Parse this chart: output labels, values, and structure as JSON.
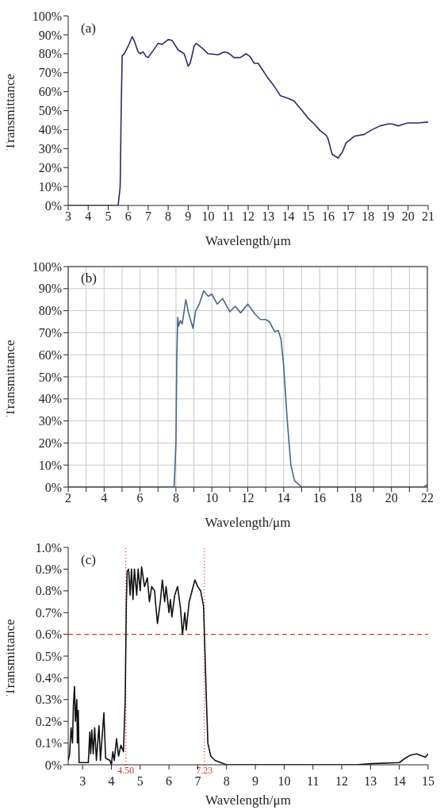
{
  "chart_data": [
    {
      "type": "line",
      "xlabel": "Wavelength/μm",
      "ylabel": "Transmittance",
      "annotations": [
        "(a)"
      ],
      "grid": false,
      "xlim": [
        3,
        21
      ],
      "xticks": [
        3,
        4,
        5,
        6,
        7,
        8,
        9,
        10,
        11,
        12,
        13,
        14,
        15,
        16,
        17,
        18,
        19,
        20,
        21
      ],
      "ylim": [
        0,
        100
      ],
      "yticks": [
        {
          "value": 0,
          "label": "0%"
        },
        {
          "value": 10,
          "label": "10%"
        },
        {
          "value": 20,
          "label": "20%"
        },
        {
          "value": 30,
          "label": "30%"
        },
        {
          "value": 40,
          "label": "40%"
        },
        {
          "value": 50,
          "label": "50%"
        },
        {
          "value": 60,
          "label": "60%"
        },
        {
          "value": 70,
          "label": "70%"
        },
        {
          "value": 80,
          "label": "80%"
        },
        {
          "value": 90,
          "label": "90%"
        },
        {
          "value": 100,
          "label": "100%"
        }
      ],
      "series": [
        {
          "color": "#2b2b6a",
          "x": [
            3,
            5.4,
            5.5,
            5.6,
            5.65,
            5.7,
            5.8,
            6.0,
            6.2,
            6.3,
            6.5,
            6.6,
            6.75,
            6.9,
            7.0,
            7.2,
            7.5,
            7.7,
            8.0,
            8.2,
            8.5,
            8.8,
            9.0,
            9.1,
            9.3,
            9.4,
            9.7,
            10.0,
            10.5,
            10.8,
            11.0,
            11.3,
            11.6,
            11.9,
            12.1,
            12.3,
            12.5,
            13.0,
            13.3,
            13.6,
            14.0,
            14.3,
            14.7,
            15.0,
            15.3,
            15.6,
            15.9,
            16.0,
            16.2,
            16.5,
            16.7,
            16.9,
            17.3,
            17.8,
            18.2,
            18.6,
            19.0,
            19.2,
            19.5,
            19.8,
            20.0,
            20.5,
            21.0
          ],
          "values": [
            0,
            0,
            0,
            10,
            50,
            79,
            80,
            84,
            89,
            87,
            81,
            80,
            81,
            78.5,
            78,
            81,
            85.5,
            85,
            87.5,
            87,
            82,
            80,
            73.5,
            75,
            84,
            85.5,
            83,
            80,
            79.5,
            81,
            80.5,
            78,
            78,
            80,
            78.5,
            75,
            75,
            67,
            63,
            58,
            56.5,
            55,
            50,
            46,
            43,
            39.5,
            37,
            35,
            27,
            25,
            28,
            33,
            36.5,
            37.5,
            40,
            42,
            43,
            43,
            42,
            43,
            43.5,
            43.5,
            44
          ]
        }
      ]
    },
    {
      "type": "line",
      "xlabel": "Wavelength/μm",
      "ylabel": "Transmittance",
      "annotations": [
        "(b)"
      ],
      "grid": true,
      "xlim": [
        2,
        22
      ],
      "xticks": [
        2,
        {
          "value": 3,
          "label": null
        },
        4,
        {
          "value": 5,
          "label": null
        },
        6,
        {
          "value": 7,
          "label": null
        },
        8,
        {
          "value": 9,
          "label": null
        },
        10,
        {
          "value": 11,
          "label": null
        },
        12,
        {
          "value": 13,
          "label": null
        },
        14,
        {
          "value": 15,
          "label": null
        },
        16,
        {
          "value": 17,
          "label": null
        },
        18,
        {
          "value": 19,
          "label": null
        },
        20,
        {
          "value": 21,
          "label": null
        },
        22
      ],
      "ylim": [
        0,
        100
      ],
      "yticks": [
        {
          "value": 0,
          "label": "0%"
        },
        {
          "value": 10,
          "label": "10%"
        },
        {
          "value": 20,
          "label": "20%"
        },
        {
          "value": 30,
          "label": "30%"
        },
        {
          "value": 40,
          "label": "40%"
        },
        {
          "value": 50,
          "label": "50%"
        },
        {
          "value": 60,
          "label": "60%"
        },
        {
          "value": 70,
          "label": "70%"
        },
        {
          "value": 80,
          "label": "80%"
        },
        {
          "value": 90,
          "label": "90%"
        },
        {
          "value": 100,
          "label": "100%"
        }
      ],
      "series": [
        {
          "color": "#4b6587",
          "x": [
            2,
            7.9,
            8.0,
            8.05,
            8.1,
            8.15,
            8.25,
            8.35,
            8.55,
            8.7,
            8.95,
            9.1,
            9.3,
            9.55,
            9.8,
            10.0,
            10.3,
            10.6,
            11.0,
            11.3,
            11.6,
            12.0,
            12.4,
            12.7,
            13.0,
            13.2,
            13.5,
            13.7,
            13.85,
            14.0,
            14.2,
            14.4,
            14.6,
            15.0,
            21.8,
            22
          ],
          "values": [
            0,
            0,
            20,
            60,
            77,
            73,
            75.5,
            74,
            85,
            79,
            72,
            80,
            83,
            89,
            86.5,
            87.5,
            83,
            85.5,
            79.5,
            82,
            79,
            83,
            78.5,
            76,
            76,
            75,
            70.5,
            71,
            67,
            55,
            30,
            10,
            3,
            0,
            0,
            1
          ]
        }
      ]
    },
    {
      "type": "line",
      "xlabel": "Wavelength/μm",
      "ylabel": "Transmittance",
      "annotations": [
        "(c)"
      ],
      "grid": false,
      "xlim": [
        2.5,
        15
      ],
      "xticks": [
        3,
        4,
        5,
        6,
        7,
        8,
        9,
        10,
        11,
        12,
        13,
        14,
        15
      ],
      "ylim": [
        0,
        1.0
      ],
      "yticks": [
        {
          "value": 0,
          "label": "0%"
        },
        {
          "value": 0.1,
          "label": "0.1%"
        },
        {
          "value": 0.2,
          "label": "0.2%"
        },
        {
          "value": 0.3,
          "label": "0.3%"
        },
        {
          "value": 0.4,
          "label": "0.4%"
        },
        {
          "value": 0.5,
          "label": "0.5%"
        },
        {
          "value": 0.6,
          "label": "0.6%"
        },
        {
          "value": 0.7,
          "label": "0.7%"
        },
        {
          "value": 0.8,
          "label": "0.8%"
        },
        {
          "value": 0.9,
          "label": "0.9%"
        },
        {
          "value": 1.0,
          "label": "1.0%"
        }
      ],
      "ref_lines": [
        {
          "axis": "y",
          "value": 0.6,
          "color": "#e8322e",
          "line_style": "dashed"
        },
        {
          "axis": "x",
          "value": 4.5,
          "label": "4.50",
          "color": "#e8322e",
          "line_style": "dotted"
        },
        {
          "axis": "x",
          "value": 7.23,
          "label": "7.23",
          "color": "#e8322e",
          "line_style": "dotted"
        }
      ],
      "series": [
        {
          "color": "#111111",
          "x": [
            2.5,
            2.55,
            2.6,
            2.65,
            2.68,
            2.72,
            2.75,
            2.8,
            2.82,
            2.85,
            2.88,
            3.0,
            3.2,
            3.25,
            3.28,
            3.32,
            3.37,
            3.42,
            3.48,
            3.57,
            3.62,
            3.74,
            3.8,
            3.95,
            4.0,
            4.05,
            4.1,
            4.18,
            4.25,
            4.33,
            4.42,
            4.48,
            4.52,
            4.55,
            4.6,
            4.65,
            4.7,
            4.75,
            4.8,
            4.88,
            4.93,
            5.0,
            5.05,
            5.15,
            5.25,
            5.32,
            5.4,
            5.5,
            5.55,
            5.6,
            5.7,
            5.77,
            5.85,
            5.9,
            6.0,
            6.05,
            6.1,
            6.2,
            6.3,
            6.4,
            6.47,
            6.55,
            6.6,
            6.7,
            6.8,
            6.9,
            7.0,
            7.1,
            7.2,
            7.23,
            7.3,
            7.35,
            7.45,
            7.6,
            7.8,
            8.0,
            10,
            12.5,
            13,
            14.0,
            14.2,
            14.4,
            14.6,
            14.8,
            14.9,
            15.0
          ],
          "values": [
            0.02,
            0.05,
            0.17,
            0.1,
            0.27,
            0.36,
            0.2,
            0.3,
            0.1,
            0.25,
            0.01,
            0.01,
            0.01,
            0.15,
            0.05,
            0.16,
            0.05,
            0.17,
            0.02,
            0.18,
            0.02,
            0.24,
            0.03,
            0.02,
            0,
            0.06,
            0.02,
            0.12,
            0.04,
            0.09,
            0.06,
            0.3,
            0.75,
            0.89,
            0.9,
            0.78,
            0.9,
            0.76,
            0.9,
            0.78,
            0.9,
            0.8,
            0.91,
            0.82,
            0.86,
            0.75,
            0.82,
            0.8,
            0.72,
            0.65,
            0.75,
            0.85,
            0.75,
            0.82,
            0.7,
            0.76,
            0.68,
            0.78,
            0.82,
            0.72,
            0.6,
            0.7,
            0.62,
            0.75,
            0.8,
            0.85,
            0.82,
            0.8,
            0.73,
            0.6,
            0.3,
            0.1,
            0.04,
            0.02,
            0.01,
            0,
            0,
            0,
            0.005,
            0.01,
            0.03,
            0.045,
            0.05,
            0.04,
            0.035,
            0.05
          ]
        }
      ]
    }
  ]
}
